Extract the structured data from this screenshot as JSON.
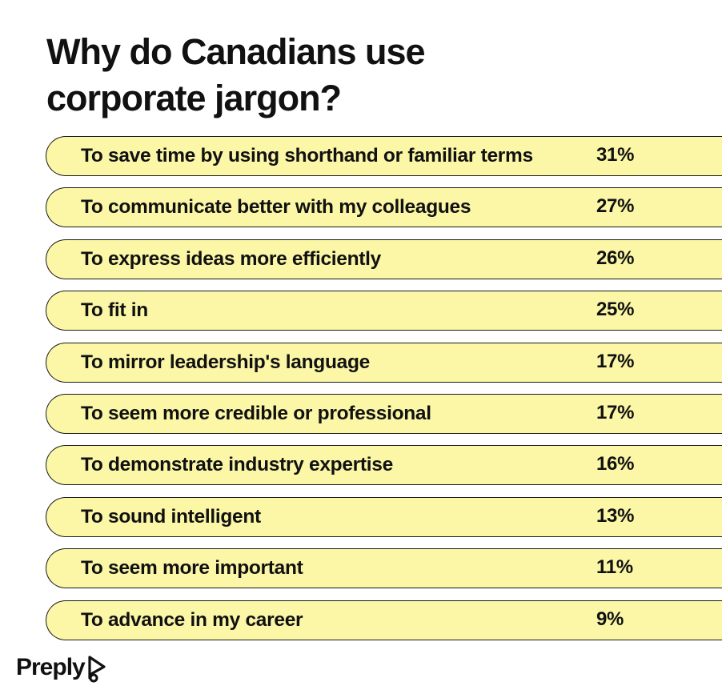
{
  "header": {
    "title": "Why do Canadians use corporate jargon?"
  },
  "chart_data": {
    "type": "bar",
    "title": "Why do Canadians use corporate jargon?",
    "categories": [
      "To save time by using shorthand or familiar terms",
      "To communicate better with my colleagues",
      "To express ideas more efficiently",
      "To fit in",
      "To mirror leadership's language",
      "To seem more credible or professional",
      "To demonstrate industry expertise",
      "To sound intelligent",
      "To seem more important",
      "To advance in my career"
    ],
    "values": [
      31,
      27,
      26,
      25,
      17,
      17,
      16,
      13,
      11,
      9
    ],
    "value_labels": [
      "31%",
      "27%",
      "26%",
      "25%",
      "17%",
      "17%",
      "16%",
      "13%",
      "11%",
      "9%"
    ],
    "unit": "%",
    "bar_color": "#fbf7a6",
    "outline_color": "#1a1a1a"
  },
  "footer": {
    "brand": "Preply",
    "logo_icon": "preply-logo-icon"
  }
}
